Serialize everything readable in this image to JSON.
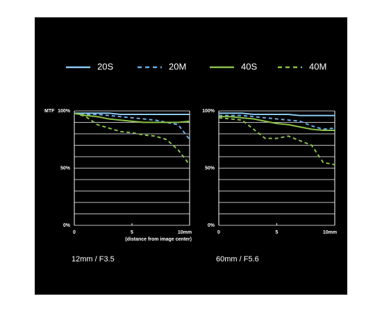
{
  "chart_data": [
    {
      "type": "line",
      "title": "12mm / F3.5",
      "y_label": "MTF",
      "x_label": "(distance from image center)",
      "x": [
        0,
        1,
        2,
        3,
        4,
        5,
        6,
        7,
        8,
        9,
        10
      ],
      "xlim": [
        0,
        10
      ],
      "xticks": [
        0,
        5,
        {
          "value": 10,
          "label": "10mm"
        }
      ],
      "ylim": [
        0,
        100
      ],
      "yticks": [
        {
          "value": 0,
          "label": "0%"
        },
        {
          "value": 50,
          "label": "50%"
        },
        {
          "value": 100,
          "label": "100%"
        }
      ],
      "minor_yticks": [
        10,
        20,
        30,
        40,
        60,
        70,
        80,
        90
      ],
      "grid": true,
      "series": [
        {
          "name": "20S",
          "color": "#8ecbf2",
          "dashed": false,
          "values": [
            98,
            98,
            98,
            98,
            97,
            97,
            97,
            97,
            97,
            97,
            97
          ]
        },
        {
          "name": "20M",
          "color": "#6aaeea",
          "dashed": true,
          "values": [
            98,
            97,
            97,
            96,
            95,
            94,
            93,
            92,
            90,
            88,
            75
          ]
        },
        {
          "name": "40S",
          "color": "#8cc34a",
          "dashed": false,
          "values": [
            98,
            96,
            95,
            93,
            92,
            91,
            90,
            90,
            90,
            90,
            91
          ]
        },
        {
          "name": "40M",
          "color": "#8cc34a",
          "dashed": true,
          "values": [
            98,
            95,
            88,
            85,
            82,
            81,
            79,
            78,
            75,
            66,
            53
          ]
        }
      ]
    },
    {
      "type": "line",
      "title": "60mm / F5.6",
      "x": [
        0,
        1,
        2,
        3,
        4,
        5,
        6,
        7,
        8,
        9,
        10
      ],
      "xlim": [
        0,
        10
      ],
      "xticks": [
        0,
        5,
        {
          "value": 10,
          "label": "10mm"
        }
      ],
      "ylim": [
        0,
        100
      ],
      "yticks": [
        {
          "value": 0,
          "label": "0%"
        },
        {
          "value": 50,
          "label": "50%"
        },
        {
          "value": 100,
          "label": "100%"
        }
      ],
      "minor_yticks": [
        10,
        20,
        30,
        40,
        60,
        70,
        80,
        90
      ],
      "grid": true,
      "series": [
        {
          "color": "#8ecbf2",
          "dashed": false,
          "values": [
            98,
            98,
            98,
            97,
            97,
            97,
            97,
            96,
            96,
            96,
            96
          ]
        },
        {
          "color": "#6aaeea",
          "dashed": true,
          "values": [
            96,
            96,
            96,
            95,
            94,
            93,
            92,
            91,
            87,
            84,
            85
          ]
        },
        {
          "color": "#8cc34a",
          "dashed": false,
          "values": [
            95,
            95,
            94,
            93,
            91,
            89,
            88,
            86,
            84,
            83,
            83
          ]
        },
        {
          "color": "#8cc34a",
          "dashed": true,
          "values": [
            94,
            93,
            92,
            84,
            76,
            76,
            78,
            74,
            70,
            55,
            53
          ]
        }
      ]
    }
  ]
}
